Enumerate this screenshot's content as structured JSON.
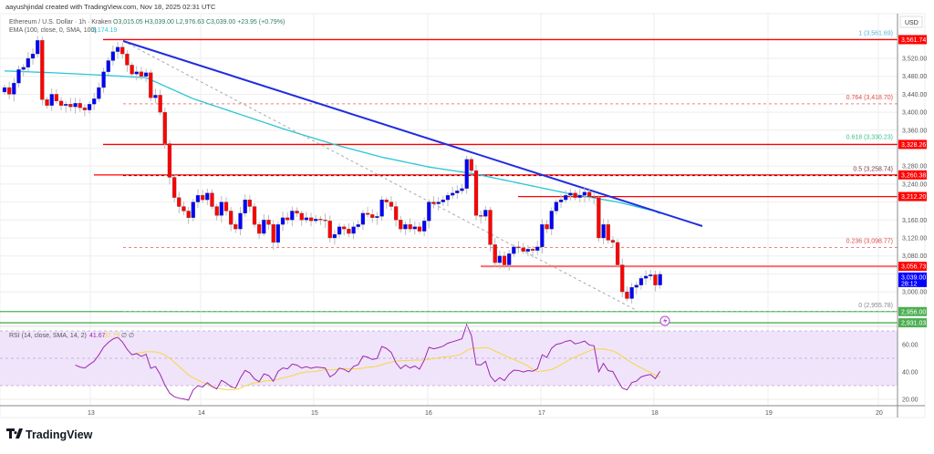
{
  "header": {
    "credit": "aayushjindal created with TradingView.com, Nov 18, 2025 02:31 UTC",
    "symbol": "Ethereum / U.S. Dollar · 1h · Kraken",
    "ohlc": "O3,015.05  H3,039.00  L2,976.63  C3,039.00  +23.95 (+0.79%)",
    "ema_label": "EMA (100, close, 0, SMA, 100)",
    "ema_value": "3,174.19"
  },
  "axis": {
    "currency": "USD",
    "price_ticks": [
      "3,520.00",
      "3,480.00",
      "3,440.00",
      "3,400.00",
      "3,360.00",
      "3,280.00",
      "3,240.00",
      "3,160.00",
      "3,120.00",
      "3,080.00",
      "3,000.00"
    ],
    "rsi_ticks": [
      "60.00",
      "40.00",
      "20.00"
    ],
    "time_ticks": [
      "13",
      "14",
      "15",
      "16",
      "17",
      "18",
      "19",
      "20"
    ]
  },
  "price_tags": [
    {
      "label": "3,561.74",
      "color": "#ff0000"
    },
    {
      "label": "3,328.26",
      "color": "#ff0000"
    },
    {
      "label": "3,260.38",
      "color": "#ff0000"
    },
    {
      "label": "3,212.20",
      "color": "#ff0000"
    },
    {
      "label": "3,056.73",
      "color": "#ff0000"
    },
    {
      "label": "3,039.00",
      "sub": "28:12",
      "color": "#0000ff"
    },
    {
      "label": "2,956.00",
      "color": "#4caf50"
    },
    {
      "label": "2,931.03",
      "color": "#4caf50"
    }
  ],
  "fib_labels": [
    {
      "text": "1 (3,561.69)",
      "color": "#5ab4d8"
    },
    {
      "text": "0.764 (3,418.70)",
      "color": "#e04848"
    },
    {
      "text": "0.618 (3,330.23)",
      "color": "#3cc08f"
    },
    {
      "text": "0.5 (3,258.74)",
      "color": "#7a3b4a"
    },
    {
      "text": "0.236 (3,098.77)",
      "color": "#e04848"
    },
    {
      "text": "0 (2,955.78)",
      "color": "#888888"
    }
  ],
  "rsi": {
    "label": "RSI (14, close, SMA, 14, 2)",
    "value": "41.67",
    "sma_value": "37.79",
    "extra": "∅  ∅",
    "line_color": "#9c27b0",
    "sma_color": "#f5d742"
  },
  "logo": "TradingView",
  "colors": {
    "bull": "#0000ff",
    "bear": "#ff0000",
    "ema": "#29c5d6",
    "trendline": "#1f2de0"
  },
  "chart_data": {
    "type": "candlestick",
    "title": "Ethereum / U.S. Dollar · 1h · Kraken",
    "interval": "1h",
    "ylim": [
      2900,
      3600
    ],
    "grid": true,
    "closes": [
      3455,
      3440,
      3465,
      3495,
      3500,
      3520,
      3530,
      3560,
      3428,
      3415,
      3440,
      3425,
      3415,
      3418,
      3412,
      3420,
      3410,
      3405,
      3418,
      3430,
      3455,
      3490,
      3515,
      3535,
      3545,
      3530,
      3505,
      3485,
      3490,
      3480,
      3488,
      3432,
      3438,
      3400,
      3330,
      3255,
      3210,
      3190,
      3180,
      3165,
      3200,
      3215,
      3205,
      3220,
      3190,
      3170,
      3200,
      3180,
      3150,
      3140,
      3175,
      3205,
      3190,
      3150,
      3130,
      3160,
      3150,
      3110,
      3150,
      3165,
      3160,
      3180,
      3175,
      3160,
      3165,
      3158,
      3162,
      3160,
      3158,
      3120,
      3128,
      3145,
      3140,
      3130,
      3145,
      3150,
      3175,
      3172,
      3165,
      3168,
      3205,
      3200,
      3190,
      3160,
      3140,
      3150,
      3140,
      3145,
      3135,
      3158,
      3200,
      3196,
      3200,
      3205,
      3215,
      3220,
      3225,
      3230,
      3295,
      3270,
      3170,
      3168,
      3182,
      3105,
      3065,
      3080,
      3060,
      3085,
      3100,
      3098,
      3090,
      3095,
      3092,
      3100,
      3150,
      3140,
      3180,
      3200,
      3205,
      3215,
      3220,
      3210,
      3215,
      3222,
      3212,
      3210,
      3120,
      3150,
      3115,
      3110,
      3060,
      3000,
      2985,
      3010,
      3015,
      3030,
      3035,
      3038,
      3015.05,
      3039.0
    ],
    "ema100_every_10_candles": [
      3492,
      3488,
      3483,
      3477,
      3430,
      3395,
      3360,
      3328,
      3300,
      3278,
      3262,
      3240,
      3218,
      3200,
      3174.19
    ],
    "horizontal_levels": [
      3561.74,
      3328.26,
      3260.38,
      3212.2,
      3056.73,
      2956.0,
      2931.03
    ],
    "fib_levels": [
      {
        "ratio": "1",
        "price": 3561.69
      },
      {
        "ratio": "0.764",
        "price": 3418.7
      },
      {
        "ratio": "0.618",
        "price": 3330.23
      },
      {
        "ratio": "0.5",
        "price": 3258.74
      },
      {
        "ratio": "0.236",
        "price": 3098.77
      },
      {
        "ratio": "0",
        "price": 2955.78
      }
    ],
    "trendline": {
      "from_price": 3561.69,
      "to_price": 3150
    }
  }
}
